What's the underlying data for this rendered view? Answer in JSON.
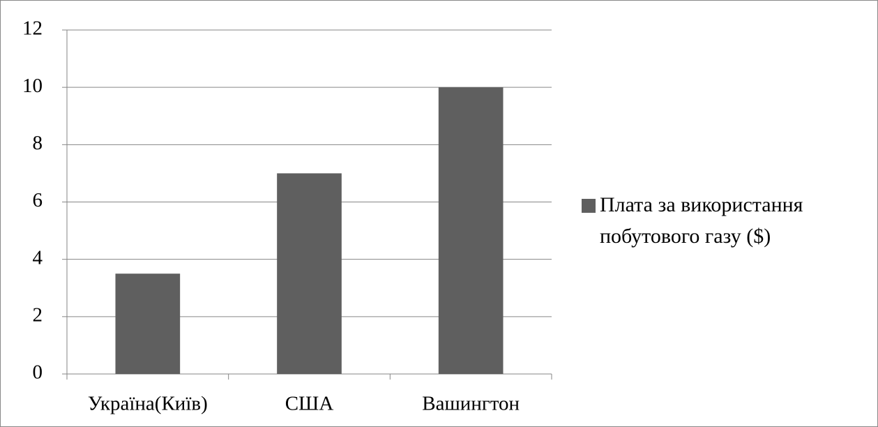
{
  "chart_data": {
    "type": "bar",
    "categories": [
      "Україна(Київ)",
      "США",
      "Вашингтон"
    ],
    "series": [
      {
        "name": "Плата за використання побутового газу ($)",
        "color": "#5f5f5f",
        "values": [
          3.5,
          7,
          10
        ]
      }
    ],
    "ylim": [
      0,
      12
    ],
    "yticks": [
      0,
      2,
      4,
      6,
      8,
      10,
      12
    ],
    "grid": true
  }
}
